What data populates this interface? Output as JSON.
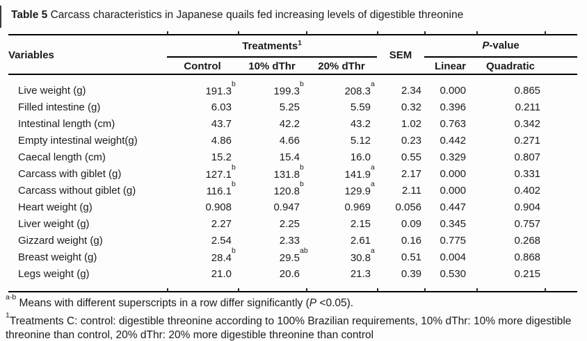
{
  "title": {
    "bold": "Table 5",
    "rest": " Carcass characteristics in Japanese quails fed increasing levels of digestible threonine"
  },
  "table": {
    "headers": {
      "variables": "Variables",
      "treatments": {
        "label": "Treatments",
        "sup": "1"
      },
      "treatment_cols": [
        "Control",
        "10% dThr",
        "20% dThr"
      ],
      "sem": "SEM",
      "p_value": {
        "italic": "P",
        "rest": "-value"
      },
      "p_cols": [
        "Linear",
        "Quadratic"
      ]
    },
    "rows": [
      {
        "label": "Live weight (g)",
        "values": [
          {
            "v": "191.3",
            "sup": "b"
          },
          {
            "v": "199.3",
            "sup": "b"
          },
          {
            "v": "208.3",
            "sup": "a"
          }
        ],
        "sem": "2.34",
        "linear": "0.000",
        "quadratic": "0.865"
      },
      {
        "label": "Filled intestine (g)",
        "values": [
          {
            "v": "6.03"
          },
          {
            "v": "5.25"
          },
          {
            "v": "5.59"
          }
        ],
        "sem": "0.32",
        "linear": "0.396",
        "quadratic": "0.211"
      },
      {
        "label": "Intestinal length (cm)",
        "values": [
          {
            "v": "43.7"
          },
          {
            "v": "42.2"
          },
          {
            "v": "43.2"
          }
        ],
        "sem": "1.02",
        "linear": "0.763",
        "quadratic": "0.342"
      },
      {
        "label": "Empty intestinal weight(g)",
        "values": [
          {
            "v": "4.86"
          },
          {
            "v": "4.66"
          },
          {
            "v": "5.12"
          }
        ],
        "sem": "0.23",
        "linear": "0.442",
        "quadratic": "0.271"
      },
      {
        "label": "Caecal length (cm)",
        "values": [
          {
            "v": "15.2"
          },
          {
            "v": "15.4"
          },
          {
            "v": "16.0"
          }
        ],
        "sem": "0.55",
        "linear": "0.329",
        "quadratic": "0.807"
      },
      {
        "label": "Carcass with giblet (g)",
        "values": [
          {
            "v": "127.1",
            "sup": "b"
          },
          {
            "v": "131.8",
            "sup": "b"
          },
          {
            "v": "141.9",
            "sup": "a"
          }
        ],
        "sem": "2.17",
        "linear": "0.000",
        "quadratic": "0.331"
      },
      {
        "label": "Carcass without giblet (g)",
        "values": [
          {
            "v": "116.1",
            "sup": "b"
          },
          {
            "v": "120.8",
            "sup": "b"
          },
          {
            "v": "129.9",
            "sup": "a"
          }
        ],
        "sem": "2.11",
        "linear": "0.000",
        "quadratic": "0.402"
      },
      {
        "label": "Heart weight (g)",
        "values": [
          {
            "v": "0.908"
          },
          {
            "v": "0.947"
          },
          {
            "v": "0.969"
          }
        ],
        "sem": "0.056",
        "linear": "0.447",
        "quadratic": "0.904"
      },
      {
        "label": "Liver weight (g)",
        "values": [
          {
            "v": "2.27"
          },
          {
            "v": "2.25"
          },
          {
            "v": "2.15"
          }
        ],
        "sem": "0.09",
        "linear": "0.345",
        "quadratic": "0.757"
      },
      {
        "label": "Gizzard weight (g)",
        "values": [
          {
            "v": "2.54"
          },
          {
            "v": "2.33"
          },
          {
            "v": "2.61"
          }
        ],
        "sem": "0.16",
        "linear": "0.775",
        "quadratic": "0.268"
      },
      {
        "label": "Breast weight (g)",
        "values": [
          {
            "v": "28.4",
            "sup": "b"
          },
          {
            "v": "29.5",
            "sup": "ab"
          },
          {
            "v": "30.8",
            "sup": "a"
          }
        ],
        "sem": "0.51",
        "linear": "0.004",
        "quadratic": "0.868"
      },
      {
        "label": "Legs weight (g)",
        "values": [
          {
            "v": "21.0"
          },
          {
            "v": "20.6"
          },
          {
            "v": "21.3"
          }
        ],
        "sem": "0.39",
        "linear": "0.530",
        "quadratic": "0.215"
      }
    ]
  },
  "footnotes": {
    "note1": {
      "sup": "a-b",
      "pre": " Means with different superscripts in a row differ significantly (",
      "italic": "P",
      "post": " <0.05)."
    },
    "note2": {
      "sup": "1",
      "line1": "Treatments C: control: digestible threonine according to 100% Brazilian requirements, 10% dThr: 10% more digestible",
      "line2": "threonine than control, 20% dThr: 20% more digestible threonine than control"
    }
  },
  "colors": {
    "text": "#1b1b1b",
    "rule": "#000000",
    "background": "#fdfdfd"
  }
}
